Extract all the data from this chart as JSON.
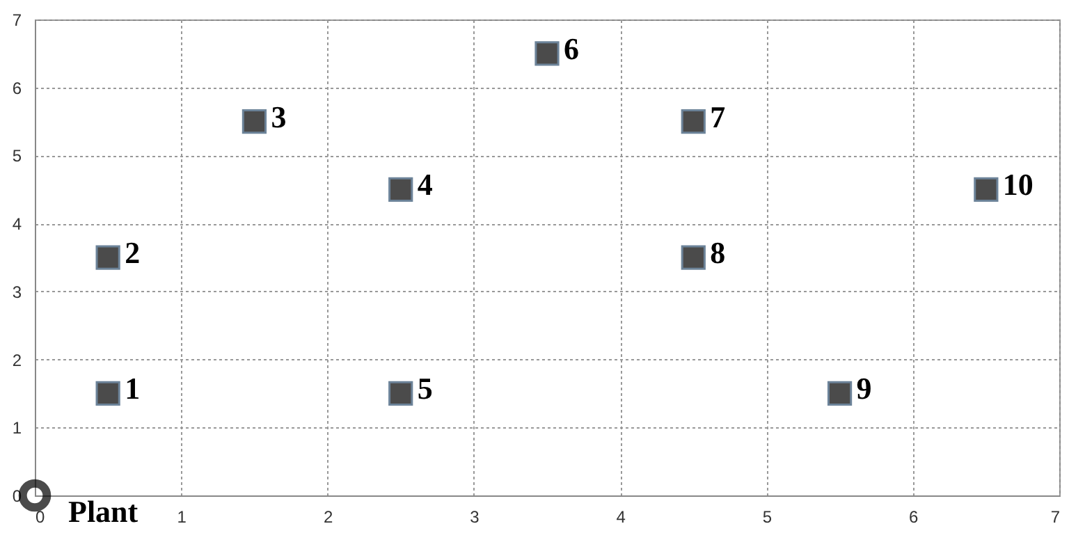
{
  "chart_data": {
    "type": "scatter",
    "xlim": [
      0,
      7
    ],
    "ylim": [
      0,
      7
    ],
    "xticks": [
      0,
      1,
      2,
      3,
      4,
      5,
      6,
      7
    ],
    "yticks": [
      0,
      1,
      2,
      3,
      4,
      5,
      6,
      7
    ],
    "grid": true,
    "legend": false,
    "series": [
      {
        "color": "#000000",
        "marker": "square",
        "x": [
          0.5,
          0.5,
          1.5,
          2.5,
          2.5,
          3.5,
          4.5,
          4.5,
          5.5,
          6.5
        ],
        "values": [
          1.5,
          3.5,
          5.5,
          4.5,
          1.5,
          6.5,
          5.5,
          3.5,
          1.5,
          4.5
        ]
      },
      {
        "name": "Plant",
        "color": "#000000",
        "marker": "circle",
        "x": [
          0
        ],
        "values": [
          0
        ]
      }
    ],
    "annotations": [
      {
        "text": "1",
        "x": 0.5,
        "y": 1.5
      },
      {
        "text": "2",
        "x": 0.5,
        "y": 3.5
      },
      {
        "text": "3",
        "x": 1.5,
        "y": 5.5
      },
      {
        "text": "4",
        "x": 2.5,
        "y": 4.5
      },
      {
        "text": "5",
        "x": 2.5,
        "y": 1.5
      },
      {
        "text": "6",
        "x": 3.5,
        "y": 6.5
      },
      {
        "text": "7",
        "x": 4.5,
        "y": 5.5
      },
      {
        "text": "8",
        "x": 4.5,
        "y": 3.5
      },
      {
        "text": "9",
        "x": 5.5,
        "y": 1.5
      },
      {
        "text": "10",
        "x": 6.5,
        "y": 4.5
      }
    ]
  }
}
